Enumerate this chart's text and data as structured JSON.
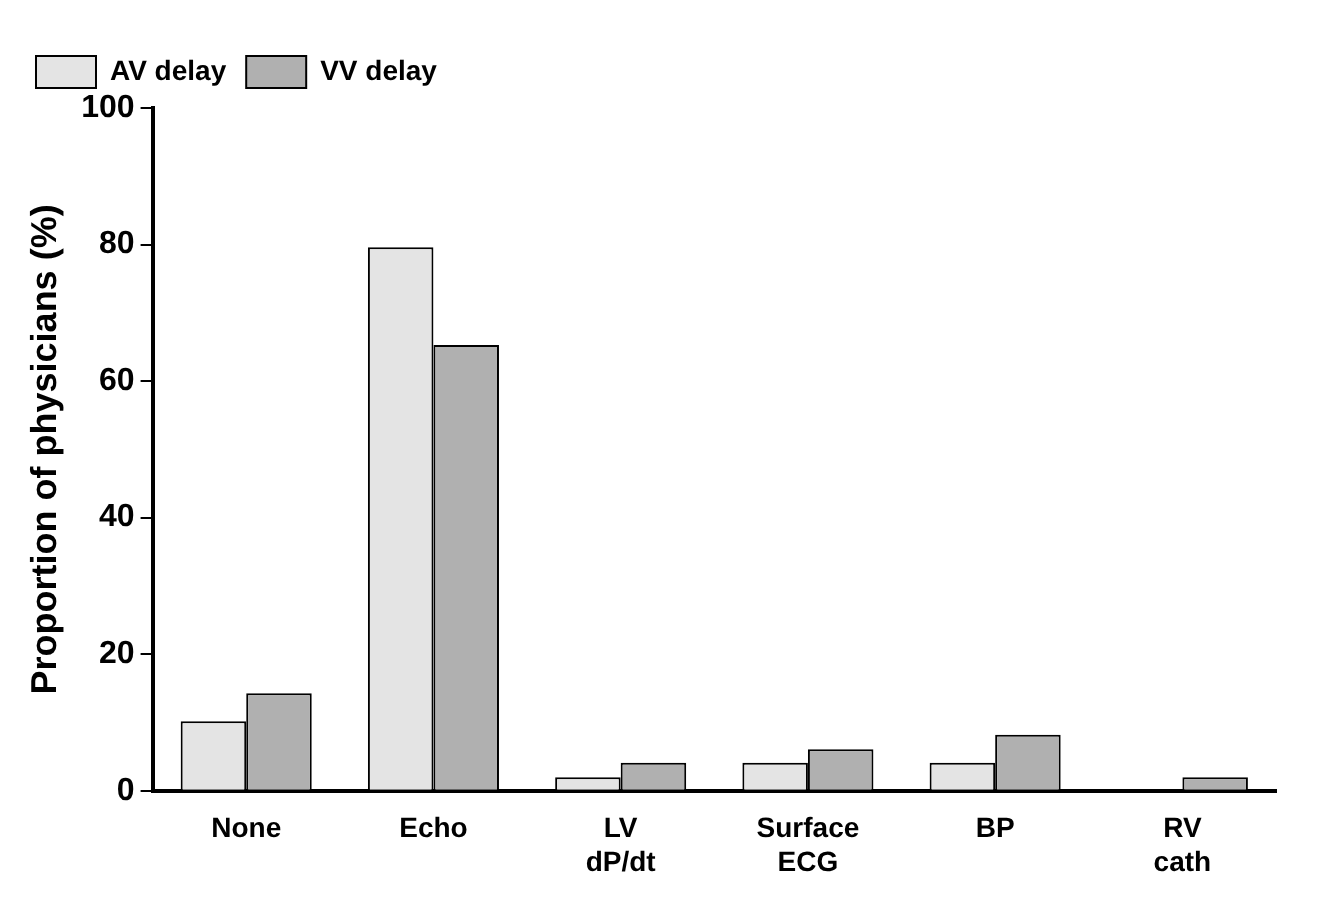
{
  "chart_data": {
    "type": "bar",
    "ylabel": "Proportion of physicians (%)",
    "categories": [
      "None",
      "Echo",
      "LV dP/dt",
      "Surface ECG",
      "BP",
      "RV cath"
    ],
    "series": [
      {
        "name": "AV delay",
        "color": "#e4e4e4",
        "values": [
          10.2,
          79.6,
          2.0,
          4.1,
          4.1,
          0
        ]
      },
      {
        "name": "VV delay",
        "color": "#b0b0b0",
        "values": [
          14.3,
          65.3,
          4.1,
          6.1,
          8.2,
          2.0
        ]
      }
    ],
    "ylim": [
      0,
      100
    ],
    "yticks": [
      0,
      20,
      40,
      60,
      80,
      100
    ],
    "grid": false,
    "legend": "top left"
  }
}
